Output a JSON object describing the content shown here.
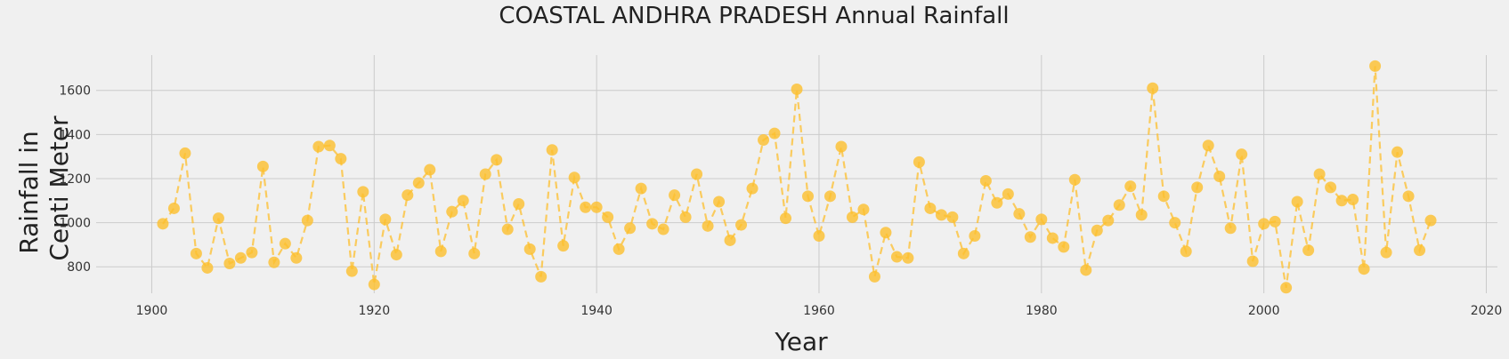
{
  "chart_data": {
    "type": "line",
    "title": "COASTAL ANDHRA PRADESH Annual Rainfall",
    "xlabel": "Year",
    "ylabel_lines": [
      "Rainfall in",
      "Centi Meter"
    ],
    "xlim": [
      1895,
      2021
    ],
    "ylim": [
      680,
      1760
    ],
    "xticks": [
      1900,
      1920,
      1940,
      1960,
      1980,
      2000,
      2020
    ],
    "yticks": [
      800,
      1000,
      1200,
      1400,
      1600
    ],
    "grid": true,
    "marker": "circle",
    "line_style": "dashed",
    "color": "#fdbf2d",
    "series": [
      {
        "x": [
          1901,
          1902,
          1903,
          1904,
          1905,
          1906,
          1907,
          1908,
          1909,
          1910,
          1911,
          1912,
          1913,
          1914,
          1915,
          1916,
          1917,
          1918,
          1919,
          1920,
          1921,
          1922,
          1923,
          1924,
          1925,
          1926,
          1927,
          1928,
          1929,
          1930,
          1931,
          1932,
          1933,
          1934,
          1935,
          1936,
          1937,
          1938,
          1939,
          1940,
          1941,
          1942,
          1943,
          1944,
          1945,
          1946,
          1947,
          1948,
          1949,
          1950,
          1951,
          1952,
          1953,
          1954,
          1955,
          1956,
          1957,
          1958,
          1959,
          1960,
          1961,
          1962,
          1963,
          1964,
          1965,
          1966,
          1967,
          1968,
          1969,
          1970,
          1971,
          1972,
          1973,
          1974,
          1975,
          1976,
          1977,
          1978,
          1979,
          1980,
          1981,
          1982,
          1983,
          1984,
          1985,
          1986,
          1987,
          1988,
          1989,
          1990,
          1991,
          1992,
          1993,
          1994,
          1995,
          1996,
          1997,
          1998,
          1999,
          2000,
          2001,
          2002,
          2003,
          2004,
          2005,
          2006,
          2007,
          2008,
          2009,
          2010,
          2011,
          2012,
          2013,
          2014,
          2015
        ],
        "values": [
          995,
          1065,
          1315,
          860,
          795,
          1020,
          815,
          840,
          865,
          1255,
          820,
          905,
          840,
          1010,
          1345,
          1350,
          1290,
          780,
          1140,
          720,
          1015,
          855,
          1125,
          1180,
          1240,
          870,
          1050,
          1100,
          860,
          1220,
          1285,
          970,
          1085,
          880,
          755,
          1330,
          895,
          1205,
          1070,
          1070,
          1025,
          880,
          975,
          1155,
          995,
          970,
          1125,
          1025,
          1220,
          985,
          1095,
          920,
          990,
          1155,
          1375,
          1405,
          1020,
          1605,
          1120,
          940,
          1120,
          1345,
          1025,
          1060,
          755,
          955,
          845,
          840,
          1275,
          1065,
          1035,
          1025,
          860,
          940,
          1190,
          1090,
          1130,
          1040,
          935,
          1015,
          930,
          890,
          1195,
          785,
          965,
          1010,
          1080,
          1165,
          1035,
          1610,
          1120,
          1000,
          870,
          1160,
          1350,
          1210,
          975,
          1310,
          825,
          995,
          1005,
          705,
          1095,
          875,
          1220,
          1160,
          1100,
          1105,
          790,
          1710,
          865,
          1320,
          1120,
          875,
          1010
        ]
      }
    ]
  }
}
